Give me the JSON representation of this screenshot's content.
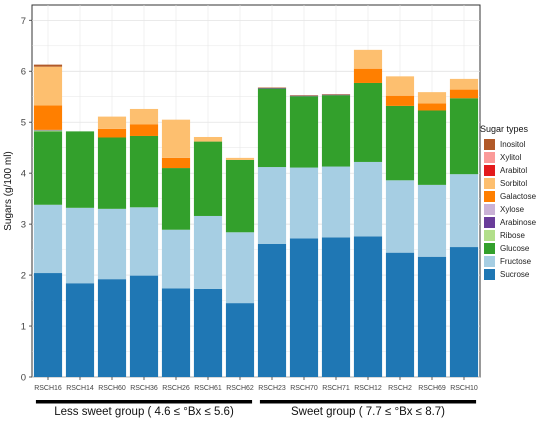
{
  "chart_data": {
    "type": "bar",
    "stacked": true,
    "ylabel": "Sugars (g/100 ml)",
    "ylim": [
      0,
      7.3
    ],
    "yticks": [
      0,
      1,
      2,
      3,
      4,
      5,
      6,
      7
    ],
    "grid": true,
    "legend_position": "right",
    "legend_title": "Sugar types",
    "categories": [
      "RSCH16",
      "RSCH14",
      "RSCH60",
      "RSCH36",
      "RSCH26",
      "RSCH61",
      "RSCH62",
      "RSCH23",
      "RSCH70",
      "RSCH71",
      "RSCH12",
      "RSCH2",
      "RSCH69",
      "RSCH10"
    ],
    "series": [
      {
        "name": "Sucrose",
        "color": "#1f77b4",
        "values": [
          2.04,
          1.84,
          1.92,
          1.99,
          1.74,
          1.73,
          1.45,
          2.61,
          2.72,
          2.74,
          2.76,
          2.44,
          2.36,
          2.55
        ]
      },
      {
        "name": "Fructose",
        "color": "#a6cee3",
        "values": [
          1.34,
          1.48,
          1.38,
          1.34,
          1.15,
          1.43,
          1.39,
          1.51,
          1.39,
          1.39,
          1.46,
          1.42,
          1.41,
          1.43
        ]
      },
      {
        "name": "Glucose",
        "color": "#33a02c",
        "values": [
          1.44,
          1.5,
          1.4,
          1.4,
          1.21,
          1.46,
          1.42,
          1.54,
          1.4,
          1.4,
          1.55,
          1.46,
          1.46,
          1.49
        ]
      },
      {
        "name": "Ribose",
        "color": "#b2df8a",
        "values": [
          0.02,
          0,
          0,
          0,
          0,
          0,
          0,
          0,
          0,
          0,
          0,
          0,
          0,
          0
        ]
      },
      {
        "name": "Arabinose",
        "color": "#6a3d9a",
        "values": [
          0.01,
          0,
          0,
          0,
          0,
          0,
          0,
          0.01,
          0.01,
          0.01,
          0,
          0,
          0,
          0
        ]
      },
      {
        "name": "Xylose",
        "color": "#cab2d6",
        "values": [
          0,
          0,
          0,
          0,
          0,
          0,
          0,
          0,
          0,
          0,
          0,
          0,
          0,
          0
        ]
      },
      {
        "name": "Galactose",
        "color": "#ff7f00",
        "values": [
          0.48,
          0,
          0.17,
          0.23,
          0.2,
          0,
          0,
          0,
          0,
          0,
          0.28,
          0.2,
          0.14,
          0.17
        ]
      },
      {
        "name": "Sorbitol",
        "color": "#fdbf6f",
        "values": [
          0.76,
          0,
          0.24,
          0.3,
          0.75,
          0.09,
          0.04,
          0,
          0,
          0,
          0.37,
          0.38,
          0.22,
          0.21
        ]
      },
      {
        "name": "Arabitol",
        "color": "#e31a1c",
        "values": [
          0,
          0,
          0,
          0,
          0,
          0,
          0,
          0,
          0,
          0,
          0,
          0,
          0,
          0
        ]
      },
      {
        "name": "Xylitol",
        "color": "#fb9a99",
        "values": [
          0,
          0,
          0,
          0,
          0,
          0,
          0,
          0,
          0,
          0,
          0,
          0,
          0,
          0
        ]
      },
      {
        "name": "Inositol",
        "color": "#b15928",
        "values": [
          0.04,
          0,
          0,
          0,
          0,
          0,
          0,
          0.01,
          0.01,
          0.01,
          0,
          0,
          0,
          0
        ]
      }
    ],
    "groups": [
      {
        "label": "Less sweet group ( 4.6 ≤ °Bx ≤ 5.6)",
        "start": 0,
        "end": 6
      },
      {
        "label": "Sweet group ( 7.7 ≤ °Bx ≤ 8.7)",
        "start": 7,
        "end": 13
      }
    ]
  }
}
